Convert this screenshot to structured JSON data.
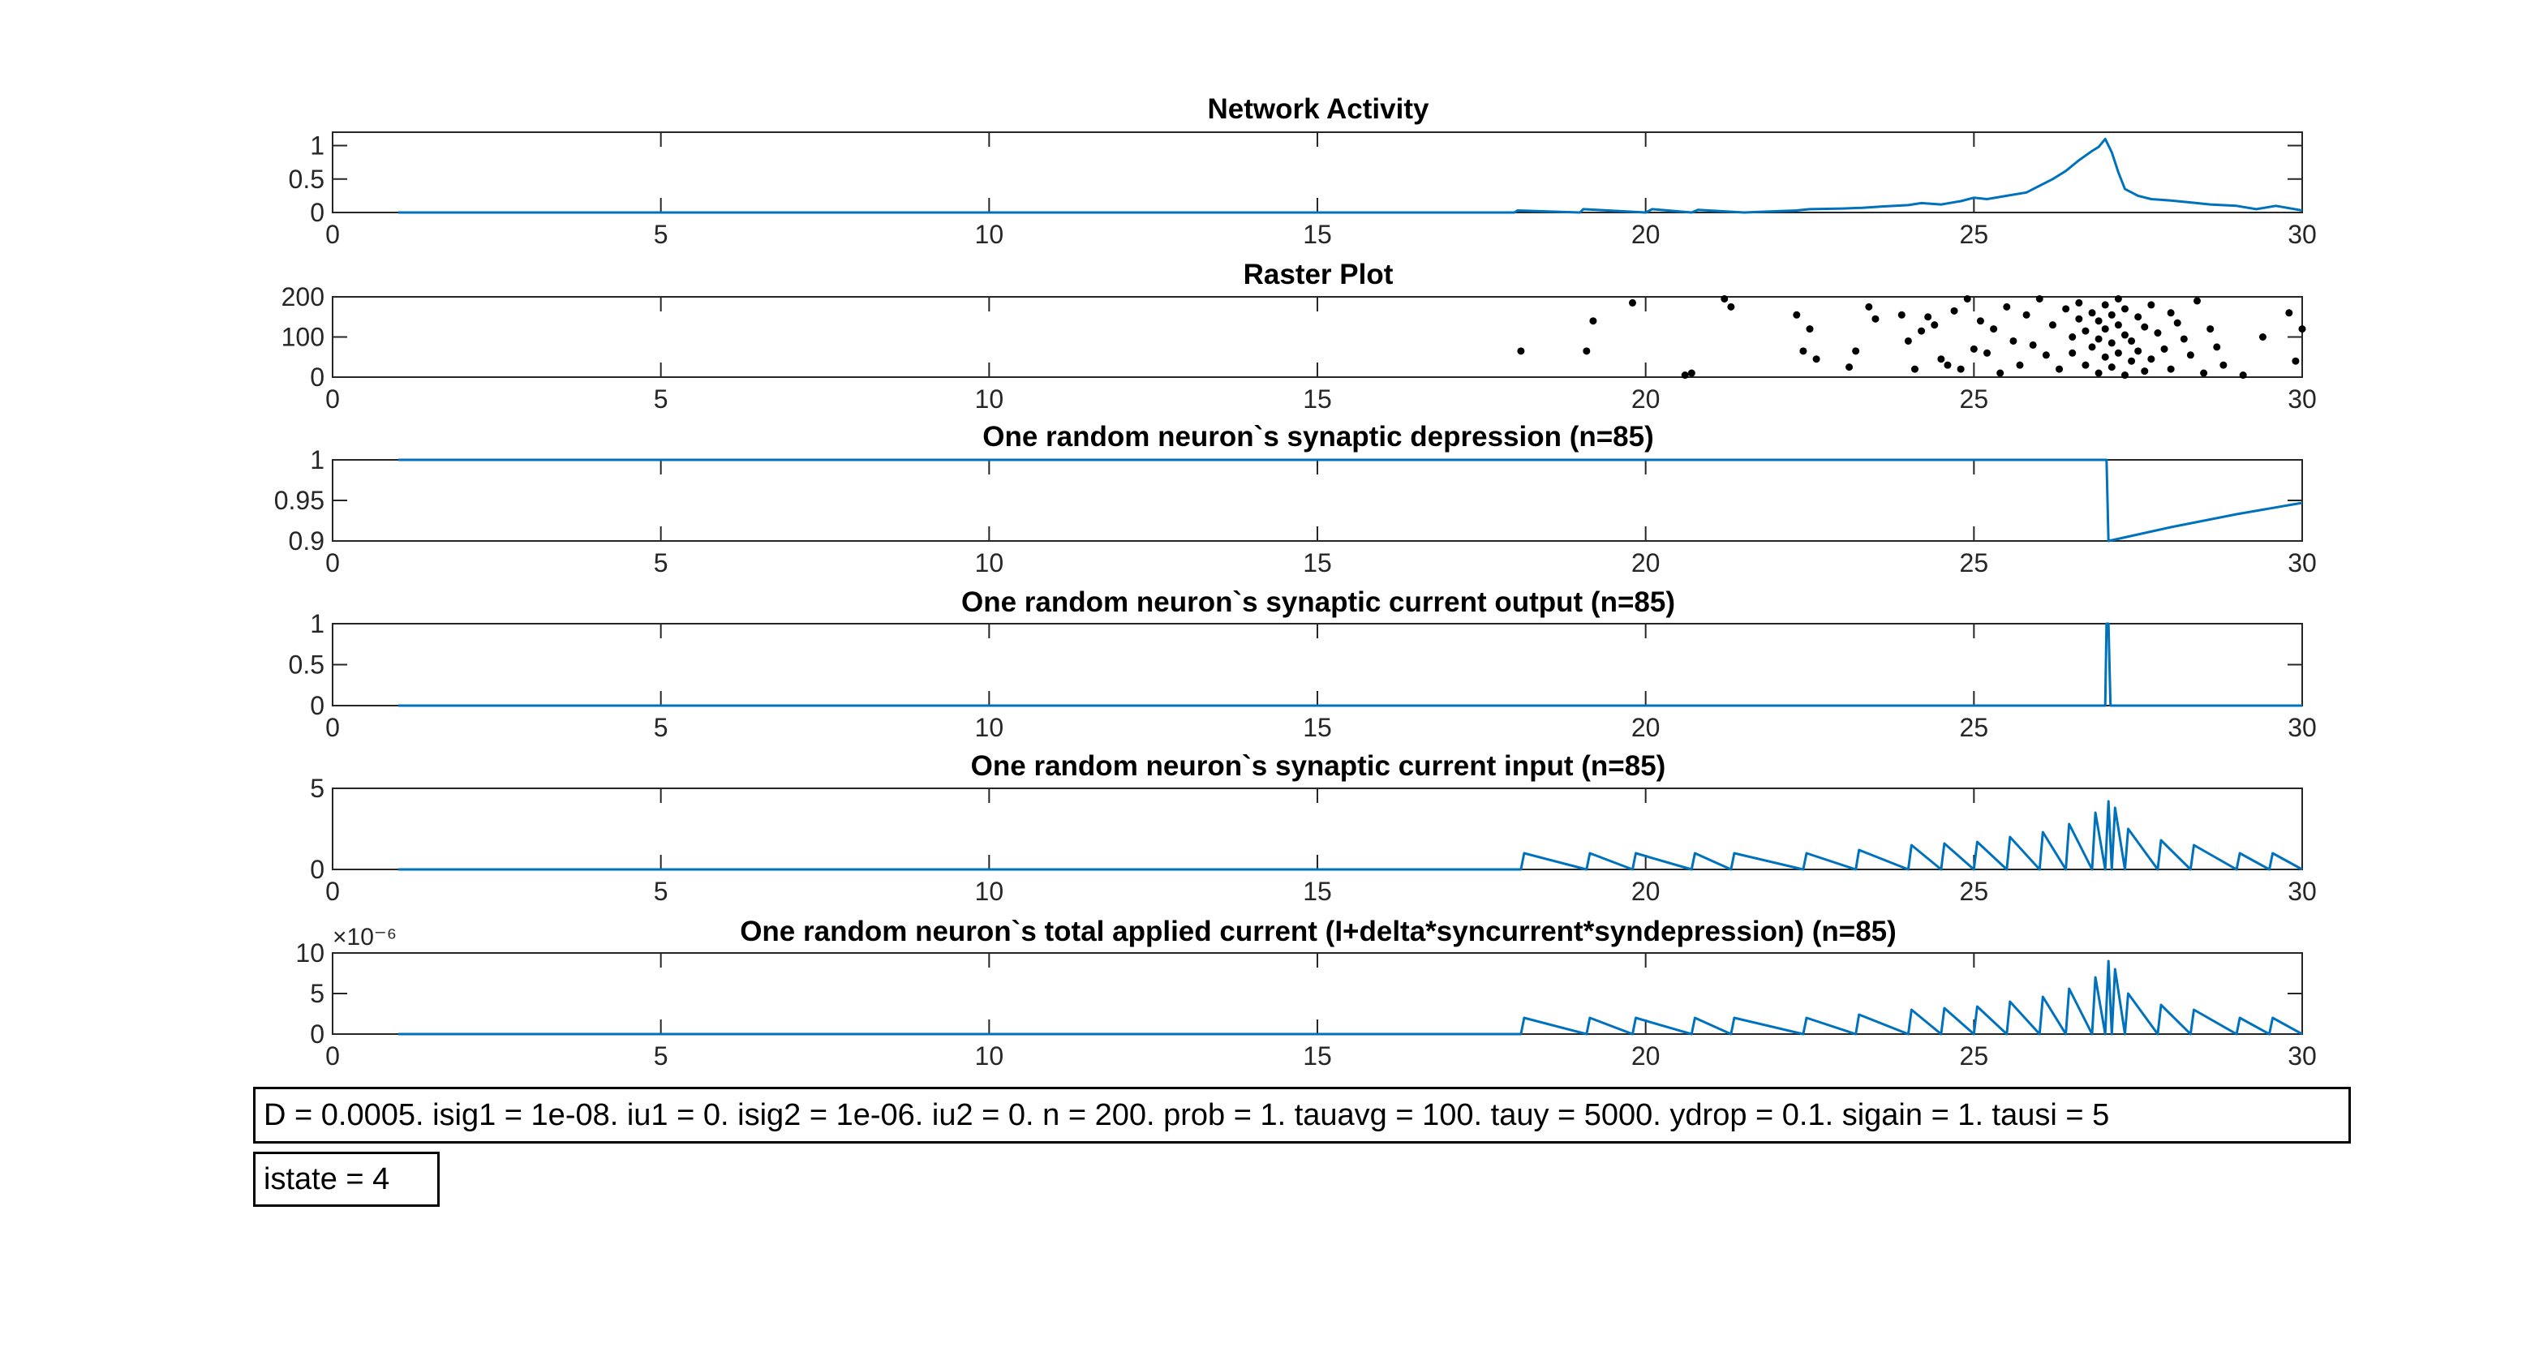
{
  "colors": {
    "line": "#0072BD",
    "dots": "#000000",
    "axis": "#262626",
    "grid_tick": "#262626"
  },
  "xlim": [
    0,
    30
  ],
  "xticks": [
    0,
    5,
    10,
    15,
    20,
    25,
    30
  ],
  "chart_data": [
    {
      "type": "line",
      "title": "Network Activity",
      "xlabel": "",
      "ylabel": "",
      "ylim": [
        0,
        1.2
      ],
      "yticks": [
        0,
        0.5,
        1
      ],
      "series": [
        {
          "x": [
            1,
            18,
            18.05,
            19,
            19.05,
            20,
            20.1,
            20.7,
            20.8,
            21.5,
            22.3,
            22.5,
            23,
            23.3,
            23.6,
            24,
            24.2,
            24.5,
            24.8,
            25,
            25.2,
            25.5,
            25.8,
            26,
            26.2,
            26.4,
            26.6,
            26.8,
            26.9,
            27.0,
            27.05,
            27.1,
            27.2,
            27.3,
            27.5,
            27.7,
            28,
            28.3,
            28.6,
            29,
            29.3,
            29.6,
            30
          ],
          "y": [
            0,
            0,
            0.03,
            0,
            0.05,
            0,
            0.05,
            0,
            0.04,
            0,
            0.03,
            0.05,
            0.06,
            0.07,
            0.09,
            0.11,
            0.14,
            0.12,
            0.17,
            0.22,
            0.2,
            0.25,
            0.3,
            0.4,
            0.5,
            0.62,
            0.78,
            0.92,
            0.98,
            1.1,
            1.0,
            0.9,
            0.6,
            0.35,
            0.25,
            0.2,
            0.18,
            0.15,
            0.12,
            0.1,
            0.05,
            0.1,
            0.03
          ]
        }
      ]
    },
    {
      "type": "scatter",
      "title": "Raster Plot",
      "xlabel": "",
      "ylabel": "",
      "ylim": [
        0,
        200
      ],
      "yticks": [
        0,
        100,
        200
      ],
      "series": [
        {
          "points": [
            [
              18.1,
              65
            ],
            [
              19.1,
              65
            ],
            [
              19.2,
              140
            ],
            [
              19.8,
              185
            ],
            [
              20.6,
              5
            ],
            [
              20.7,
              10
            ],
            [
              21.2,
              195
            ],
            [
              21.3,
              175
            ],
            [
              22.3,
              155
            ],
            [
              22.4,
              65
            ],
            [
              22.5,
              120
            ],
            [
              22.6,
              45
            ],
            [
              23.1,
              25
            ],
            [
              23.2,
              65
            ],
            [
              23.4,
              175
            ],
            [
              23.5,
              145
            ],
            [
              23.9,
              155
            ],
            [
              24.0,
              90
            ],
            [
              24.1,
              20
            ],
            [
              24.2,
              115
            ],
            [
              24.3,
              150
            ],
            [
              24.4,
              130
            ],
            [
              24.5,
              45
            ],
            [
              24.6,
              30
            ],
            [
              24.7,
              165
            ],
            [
              24.8,
              20
            ],
            [
              24.9,
              195
            ],
            [
              25.0,
              70
            ],
            [
              25.1,
              140
            ],
            [
              25.2,
              60
            ],
            [
              25.3,
              120
            ],
            [
              25.4,
              10
            ],
            [
              25.5,
              175
            ],
            [
              25.6,
              90
            ],
            [
              25.7,
              30
            ],
            [
              25.8,
              155
            ],
            [
              25.9,
              80
            ],
            [
              26.0,
              195
            ],
            [
              26.1,
              55
            ],
            [
              26.2,
              130
            ],
            [
              26.3,
              20
            ],
            [
              26.4,
              170
            ],
            [
              26.5,
              100
            ],
            [
              26.5,
              60
            ],
            [
              26.6,
              145
            ],
            [
              26.6,
              185
            ],
            [
              26.7,
              30
            ],
            [
              26.7,
              115
            ],
            [
              26.8,
              75
            ],
            [
              26.8,
              160
            ],
            [
              26.9,
              10
            ],
            [
              26.9,
              95
            ],
            [
              26.9,
              140
            ],
            [
              27.0,
              50
            ],
            [
              27.0,
              120
            ],
            [
              27.0,
              180
            ],
            [
              27.1,
              25
            ],
            [
              27.1,
              85
            ],
            [
              27.1,
              155
            ],
            [
              27.2,
              60
            ],
            [
              27.2,
              130
            ],
            [
              27.2,
              195
            ],
            [
              27.3,
              5
            ],
            [
              27.3,
              105
            ],
            [
              27.3,
              170
            ],
            [
              27.4,
              40
            ],
            [
              27.4,
              90
            ],
            [
              27.5,
              150
            ],
            [
              27.5,
              65
            ],
            [
              27.6,
              125
            ],
            [
              27.6,
              15
            ],
            [
              27.7,
              180
            ],
            [
              27.7,
              45
            ],
            [
              27.8,
              110
            ],
            [
              27.9,
              70
            ],
            [
              28.0,
              160
            ],
            [
              28.0,
              20
            ],
            [
              28.1,
              135
            ],
            [
              28.2,
              95
            ],
            [
              28.3,
              55
            ],
            [
              28.4,
              190
            ],
            [
              28.5,
              10
            ],
            [
              28.6,
              120
            ],
            [
              28.7,
              75
            ],
            [
              28.8,
              30
            ],
            [
              29.1,
              5
            ],
            [
              29.4,
              100
            ],
            [
              29.8,
              160
            ],
            [
              29.9,
              40
            ],
            [
              30.0,
              120
            ]
          ]
        }
      ]
    },
    {
      "type": "line",
      "title": "One random neuron`s synaptic depression (n=85)",
      "xlabel": "",
      "ylabel": "",
      "ylim": [
        0.9,
        1
      ],
      "yticks": [
        0.9,
        0.95,
        1
      ],
      "ytick_labels": [
        "0.9",
        "0.95",
        "1"
      ],
      "series": [
        {
          "x": [
            1,
            27.02,
            27.05,
            28,
            29,
            30
          ],
          "y": [
            1,
            1,
            0.9,
            0.917,
            0.933,
            0.947
          ]
        }
      ]
    },
    {
      "type": "line",
      "title": "One random neuron`s synaptic current output (n=85)",
      "xlabel": "",
      "ylabel": "",
      "ylim": [
        0,
        1
      ],
      "yticks": [
        0,
        0.5,
        1
      ],
      "series": [
        {
          "x": [
            1,
            27.0,
            27.02,
            27.05,
            27.08,
            30
          ],
          "y": [
            0,
            0,
            1,
            1,
            0,
            0
          ]
        }
      ]
    },
    {
      "type": "line",
      "title": "One random neuron`s synaptic current input (n=85)",
      "xlabel": "",
      "ylabel": "",
      "ylim": [
        0,
        5
      ],
      "yticks": [
        0,
        5
      ],
      "series": [
        {
          "x": [
            1,
            18.1,
            18.15,
            19.1,
            19.15,
            19.8,
            19.85,
            20.7,
            20.75,
            21.3,
            21.35,
            22.4,
            22.45,
            23.2,
            23.25,
            24,
            24.05,
            24.5,
            24.55,
            25,
            25.05,
            25.5,
            25.55,
            26,
            26.05,
            26.4,
            26.45,
            26.8,
            26.85,
            27.0,
            27.05,
            27.1,
            27.15,
            27.3,
            27.35,
            27.8,
            27.85,
            28.3,
            28.35,
            29,
            29.05,
            29.5,
            29.55,
            30
          ],
          "y": [
            0,
            0,
            1,
            0,
            1,
            0,
            1,
            0,
            1,
            0,
            1,
            0,
            1,
            0,
            1.2,
            0,
            1.5,
            0,
            1.6,
            0,
            1.7,
            0,
            2.0,
            0,
            2.3,
            0,
            2.8,
            0,
            3.5,
            0,
            4.2,
            0,
            3.8,
            0,
            2.5,
            0,
            1.8,
            0,
            1.5,
            0,
            1.0,
            0,
            1.0,
            0
          ]
        }
      ]
    },
    {
      "type": "line",
      "title": "One random neuron`s total applied current (I+delta*syncurrent*syndepression) (n=85)",
      "xlabel": "",
      "ylabel": "",
      "exponent_label": "×10⁻⁶",
      "ylim": [
        0,
        10
      ],
      "yticks": [
        0,
        5,
        10
      ],
      "series": [
        {
          "x": [
            1,
            18.1,
            18.15,
            19.1,
            19.15,
            19.8,
            19.85,
            20.7,
            20.75,
            21.3,
            21.35,
            22.4,
            22.45,
            23.2,
            23.25,
            24,
            24.05,
            24.5,
            24.55,
            25,
            25.05,
            25.5,
            25.55,
            26,
            26.05,
            26.4,
            26.45,
            26.8,
            26.85,
            27.0,
            27.05,
            27.1,
            27.15,
            27.3,
            27.35,
            27.8,
            27.85,
            28.3,
            28.35,
            29,
            29.05,
            29.5,
            29.55,
            30
          ],
          "y": [
            0,
            0,
            2,
            0,
            2,
            0,
            2,
            0,
            2,
            0,
            2,
            0,
            2,
            0,
            2.4,
            0,
            3.0,
            0,
            3.2,
            0,
            3.4,
            0,
            4.0,
            0,
            4.6,
            0,
            5.6,
            0,
            7.0,
            0,
            9.0,
            0,
            8.0,
            0,
            5.0,
            0,
            3.6,
            0,
            3.0,
            0,
            2.0,
            0,
            2.0,
            0
          ]
        }
      ]
    }
  ],
  "annotations": {
    "params": "D = 0.0005. isig1 = 1e-08. iu1 = 0. isig2 = 1e-06. iu2 = 0. n = 200. prob = 1. tauavg = 100. tauy = 5000. ydrop = 0.1. sigain = 1. tausi = 5",
    "istate": "istate = 4"
  }
}
